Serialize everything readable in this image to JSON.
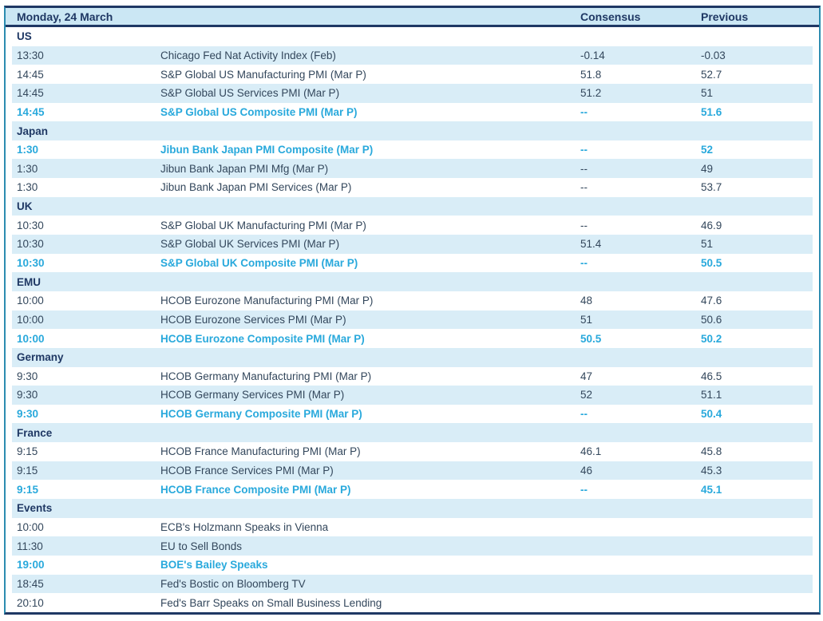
{
  "table": {
    "title": "Monday, 24 March",
    "columns": {
      "consensus": "Consensus",
      "previous": "Previous"
    },
    "sections": [
      {
        "name": "US",
        "rows": [
          {
            "time": "13:30",
            "event": "Chicago Fed Nat Activity Index (Feb)",
            "consensus": "-0.14",
            "previous": "-0.03",
            "highlight": false
          },
          {
            "time": "14:45",
            "event": "S&P Global US Manufacturing PMI (Mar P)",
            "consensus": "51.8",
            "previous": "52.7",
            "highlight": false
          },
          {
            "time": "14:45",
            "event": "S&P Global US Services PMI (Mar P)",
            "consensus": "51.2",
            "previous": "51",
            "highlight": false
          },
          {
            "time": "14:45",
            "event": "S&P Global US Composite PMI (Mar P)",
            "consensus": "--",
            "previous": "51.6",
            "highlight": true
          }
        ]
      },
      {
        "name": "Japan",
        "rows": [
          {
            "time": "1:30",
            "event": "Jibun Bank Japan PMI Composite (Mar P)",
            "consensus": "--",
            "previous": "52",
            "highlight": true
          },
          {
            "time": "1:30",
            "event": "Jibun Bank Japan PMI Mfg (Mar P)",
            "consensus": "--",
            "previous": "49",
            "highlight": false
          },
          {
            "time": "1:30",
            "event": "Jibun Bank Japan PMI Services (Mar P)",
            "consensus": "--",
            "previous": "53.7",
            "highlight": false
          }
        ]
      },
      {
        "name": "UK",
        "rows": [
          {
            "time": "10:30",
            "event": "S&P Global UK Manufacturing PMI (Mar P)",
            "consensus": "--",
            "previous": "46.9",
            "highlight": false
          },
          {
            "time": "10:30",
            "event": "S&P Global UK Services PMI (Mar P)",
            "consensus": "51.4",
            "previous": "51",
            "highlight": false
          },
          {
            "time": "10:30",
            "event": "S&P Global UK Composite PMI (Mar P)",
            "consensus": "--",
            "previous": "50.5",
            "highlight": true
          }
        ]
      },
      {
        "name": "EMU",
        "rows": [
          {
            "time": "10:00",
            "event": "HCOB Eurozone Manufacturing PMI (Mar P)",
            "consensus": "48",
            "previous": "47.6",
            "highlight": false
          },
          {
            "time": "10:00",
            "event": "HCOB Eurozone Services PMI (Mar P)",
            "consensus": "51",
            "previous": "50.6",
            "highlight": false
          },
          {
            "time": "10:00",
            "event": "HCOB Eurozone Composite PMI (Mar P)",
            "consensus": "50.5",
            "previous": "50.2",
            "highlight": true
          }
        ]
      },
      {
        "name": "Germany",
        "rows": [
          {
            "time": "9:30",
            "event": "HCOB Germany Manufacturing PMI (Mar P)",
            "consensus": "47",
            "previous": "46.5",
            "highlight": false
          },
          {
            "time": "9:30",
            "event": "HCOB Germany Services PMI (Mar P)",
            "consensus": "52",
            "previous": "51.1",
            "highlight": false
          },
          {
            "time": "9:30",
            "event": "HCOB Germany Composite PMI (Mar P)",
            "consensus": "--",
            "previous": "50.4",
            "highlight": true
          }
        ]
      },
      {
        "name": "France",
        "rows": [
          {
            "time": "9:15",
            "event": "HCOB France Manufacturing PMI (Mar P)",
            "consensus": "46.1",
            "previous": "45.8",
            "highlight": false
          },
          {
            "time": "9:15",
            "event": "HCOB France Services PMI (Mar P)",
            "consensus": "46",
            "previous": "45.3",
            "highlight": false
          },
          {
            "time": "9:15",
            "event": "HCOB France Composite PMI (Mar P)",
            "consensus": "--",
            "previous": "45.1",
            "highlight": true
          }
        ]
      },
      {
        "name": "Events",
        "rows": [
          {
            "time": "10:00",
            "event": "ECB's Holzmann Speaks in Vienna",
            "consensus": "",
            "previous": "",
            "highlight": false
          },
          {
            "time": "11:30",
            "event": "EU to Sell Bonds",
            "consensus": "",
            "previous": "",
            "highlight": false
          },
          {
            "time": "19:00",
            "event": "BOE's Bailey Speaks",
            "consensus": "",
            "previous": "",
            "highlight": true
          },
          {
            "time": "18:45",
            "event": "Fed's Bostic on Bloomberg TV",
            "consensus": "",
            "previous": "",
            "highlight": false
          },
          {
            "time": "20:10",
            "event": "Fed's Barr Speaks on Small Business Lending",
            "consensus": "",
            "previous": "",
            "highlight": false
          }
        ]
      }
    ]
  },
  "colors": {
    "navy": "#1f3864",
    "teal_border": "#2c8cb0",
    "highlight_text": "#29a9dc",
    "row_alt_bg": "#d9edf7",
    "header_bg": "#cbe7f4",
    "body_text": "#33475c"
  }
}
